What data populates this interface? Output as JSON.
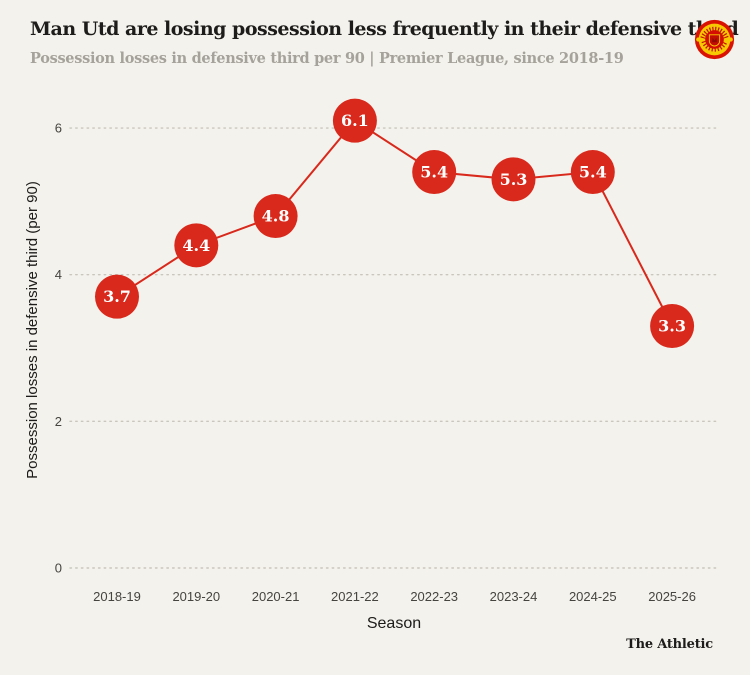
{
  "theme": {
    "background": "#f4f2ec",
    "text_dark": "#1d1c1a",
    "text_muted": "#a5a29b"
  },
  "header": {
    "title": "Man Utd are losing possession less frequently in their defensive third",
    "subtitle": "Possession losses in defensive third  per 90 | Premier League, since 2018-19",
    "logo_icon": "manchester-united-crest"
  },
  "chart_data": {
    "type": "line",
    "categories": [
      "2018-19",
      "2019-20",
      "2020-21",
      "2021-22",
      "2022-23",
      "2023-24",
      "2024-25",
      "2025-26"
    ],
    "values": [
      3.7,
      4.4,
      4.8,
      6.1,
      5.4,
      5.3,
      5.4,
      3.3
    ],
    "title": "Man Utd are losing possession less frequently in their defensive third",
    "xlabel": "Season",
    "ylabel": "Possession losses in defensive third (per 90)",
    "yticks": [
      0,
      2,
      4,
      6
    ],
    "ylim": [
      0,
      6.6
    ],
    "grid": "horizontal-dotted",
    "legend": "none",
    "marker": "circle-with-value-label",
    "colors": {
      "line": "#d8291c",
      "marker": "#d8291c",
      "marker_text": "#ffffff",
      "grid": "#c9c6be",
      "tick_text": "#45443f",
      "axis_text": "#1d1c1a"
    }
  },
  "footer": {
    "brand": "The Athletic"
  }
}
